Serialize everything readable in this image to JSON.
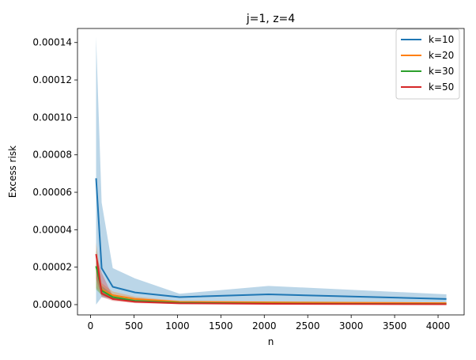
{
  "chart_data": {
    "type": "line",
    "title": "j=1, z=4",
    "xlabel": "n",
    "ylabel": "Excess risk",
    "xlim": [
      -150,
      4300
    ],
    "ylim": [
      -5.5e-06,
      0.0001475
    ],
    "xticks": [
      0,
      500,
      1000,
      1500,
      2000,
      2500,
      3000,
      3500,
      4000
    ],
    "xtick_labels": [
      "0",
      "500",
      "1000",
      "1500",
      "2000",
      "2500",
      "3000",
      "3500",
      "4000"
    ],
    "yticks": [
      0,
      2e-05,
      4e-05,
      6e-05,
      8e-05,
      0.0001,
      0.00012,
      0.00014
    ],
    "ytick_labels": [
      "0.00000",
      "0.00002",
      "0.00004",
      "0.00006",
      "0.00008",
      "0.00010",
      "0.00012",
      "0.00014"
    ],
    "legend_position": "top-right",
    "x": [
      64,
      128,
      256,
      512,
      1024,
      2048,
      4096
    ],
    "series": [
      {
        "name": "k=10",
        "color": "#1f77b4",
        "values": [
          6.75e-05,
          1.95e-05,
          9.5e-06,
          6.5e-06,
          4e-06,
          5.5e-06,
          3e-06
        ],
        "band_low": [
          0.0,
          4e-06,
          3e-06,
          2e-06,
          1.5e-06,
          1.5e-06,
          1e-06
        ],
        "band_high": [
          0.000143,
          5.45e-05,
          1.95e-05,
          1.4e-05,
          5.8e-06,
          1e-05,
          5.5e-06
        ]
      },
      {
        "name": "k=20",
        "color": "#ff7f0e",
        "values": [
          2.05e-05,
          8e-06,
          5e-06,
          3e-06,
          1.5e-06,
          1.2e-06,
          8e-07
        ],
        "band_low": [
          9e-06,
          5e-06,
          3e-06,
          2e-06,
          1e-06,
          7e-07,
          4e-07
        ],
        "band_high": [
          3.3e-05,
          1.15e-05,
          7e-06,
          4.2e-06,
          2e-06,
          1.7e-06,
          1.2e-06
        ]
      },
      {
        "name": "k=30",
        "color": "#2ca02c",
        "values": [
          2.05e-05,
          7.5e-06,
          4e-06,
          2e-06,
          1e-06,
          6e-07,
          3e-07
        ],
        "band_low": [
          8e-06,
          5e-06,
          2.5e-06,
          1.2e-06,
          6e-07,
          3e-07,
          1e-07
        ],
        "band_high": [
          2.9e-05,
          1e-05,
          5.5e-06,
          3e-06,
          1.5e-06,
          9e-07,
          5e-07
        ]
      },
      {
        "name": "k=50",
        "color": "#d62728",
        "values": [
          2.7e-05,
          6e-06,
          3e-06,
          1.5e-06,
          7e-07,
          4e-07,
          2e-07
        ],
        "band_low": [
          1.4e-05,
          4e-06,
          2e-06,
          8e-07,
          3e-07,
          2e-07,
          1e-07
        ],
        "band_high": [
          2.7e-05,
          1.7e-05,
          4.5e-06,
          2.2e-06,
          1e-06,
          6e-07,
          3e-07
        ]
      }
    ]
  }
}
